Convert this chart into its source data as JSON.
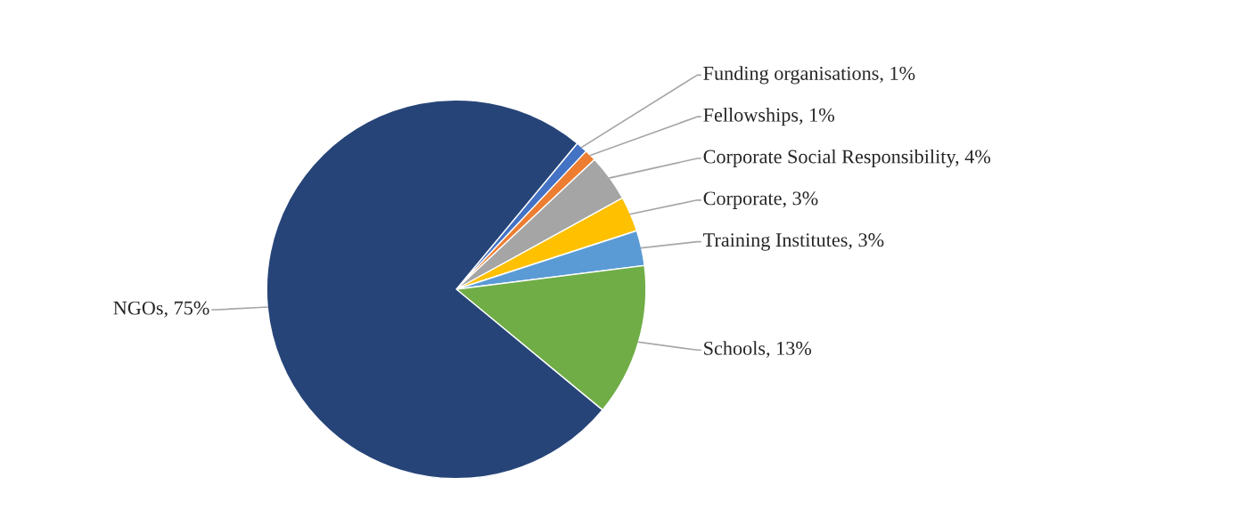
{
  "chart_data": {
    "type": "pie",
    "categories": [
      "Funding organisations",
      "Fellowships",
      "Corporate Social Responsibility",
      "Corporate",
      "Training Institutes",
      "Schools",
      "NGOs"
    ],
    "values": [
      1,
      1,
      4,
      3,
      3,
      13,
      75
    ],
    "value_labels": [
      "1%",
      "1%",
      "4%",
      "3%",
      "3%",
      "13%",
      "75%"
    ],
    "colors": [
      "#4472c4",
      "#ed7d31",
      "#a5a5a5",
      "#ffc000",
      "#5b9bd5",
      "#70ad47",
      "#264478"
    ],
    "legend": false
  }
}
